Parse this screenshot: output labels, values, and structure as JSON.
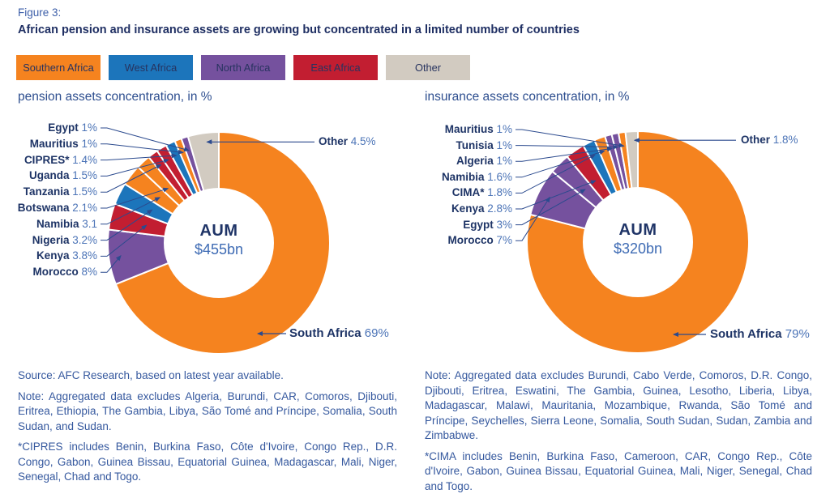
{
  "figure": {
    "label": "Figure 3:",
    "title": "African pension and insurance assets are growing but concentrated in a limited number of countries"
  },
  "legend": [
    {
      "label": "Southern Africa",
      "color": "#F5831F"
    },
    {
      "label": "West Africa",
      "color": "#1C75BB"
    },
    {
      "label": "North Africa",
      "color": "#75519E"
    },
    {
      "label": "East Africa",
      "color": "#C21E31"
    },
    {
      "label": "Other",
      "color": "#D2CBC1"
    }
  ],
  "chart_data": [
    {
      "type": "pie",
      "variant": "donut",
      "title": "pension assets concentration, in %",
      "units": "%",
      "legend_position": "top",
      "center": {
        "label": "AUM",
        "value": "$455bn"
      },
      "slices": [
        {
          "name": "South Africa",
          "value": 69,
          "display": "69%",
          "region": "Southern Africa",
          "color": "#F5831F"
        },
        {
          "name": "Morocco",
          "value": 8,
          "display": "8%",
          "region": "North Africa",
          "color": "#75519E"
        },
        {
          "name": "Kenya",
          "value": 3.8,
          "display": "3.8%",
          "region": "East Africa",
          "color": "#C21E31"
        },
        {
          "name": "Nigeria",
          "value": 3.2,
          "display": "3.2%",
          "region": "West Africa",
          "color": "#1C75BB"
        },
        {
          "name": "Namibia",
          "value": 3.1,
          "display": "3.1",
          "region": "Southern Africa",
          "color": "#F5831F"
        },
        {
          "name": "Botswana",
          "value": 2.1,
          "display": "2.1%",
          "region": "Southern Africa",
          "color": "#F5831F"
        },
        {
          "name": "Tanzania",
          "value": 1.5,
          "display": "1.5%",
          "region": "East Africa",
          "color": "#C21E31"
        },
        {
          "name": "Uganda",
          "value": 1.5,
          "display": "1.5%",
          "region": "East Africa",
          "color": "#C21E31"
        },
        {
          "name": "CIPRES*",
          "value": 1.4,
          "display": "1.4%",
          "region": "West Africa",
          "color": "#1C75BB"
        },
        {
          "name": "Mauritius",
          "value": 1,
          "display": "1%",
          "region": "Southern Africa",
          "color": "#F5831F"
        },
        {
          "name": "Egypt",
          "value": 1,
          "display": "1%",
          "region": "North Africa",
          "color": "#75519E"
        },
        {
          "name": "Other",
          "value": 4.5,
          "display": "4.5%",
          "region": "Other",
          "color": "#D2CBC1"
        }
      ],
      "left_labels": [
        "Egypt",
        "Mauritius",
        "CIPRES*",
        "Uganda",
        "Tanzania",
        "Botswana",
        "Namibia",
        "Nigeria",
        "Kenya",
        "Morocco"
      ],
      "right_callout": "Other",
      "bottom_callout": "South Africa"
    },
    {
      "type": "pie",
      "variant": "donut",
      "title": "insurance assets concentration, in %",
      "units": "%",
      "legend_position": "top",
      "center": {
        "label": "AUM",
        "value": "$320bn"
      },
      "slices": [
        {
          "name": "South Africa",
          "value": 79,
          "display": "79%",
          "region": "Southern Africa",
          "color": "#F5831F"
        },
        {
          "name": "Morocco",
          "value": 7,
          "display": "7%",
          "region": "North Africa",
          "color": "#75519E"
        },
        {
          "name": "Egypt",
          "value": 3,
          "display": "3%",
          "region": "North Africa",
          "color": "#75519E"
        },
        {
          "name": "Kenya",
          "value": 2.8,
          "display": "2.8%",
          "region": "East Africa",
          "color": "#C21E31"
        },
        {
          "name": "CIMA*",
          "value": 1.8,
          "display": "1.8%",
          "region": "West Africa",
          "color": "#1C75BB"
        },
        {
          "name": "Namibia",
          "value": 1.6,
          "display": "1.6%",
          "region": "Southern Africa",
          "color": "#F5831F"
        },
        {
          "name": "Algeria",
          "value": 1,
          "display": "1%",
          "region": "North Africa",
          "color": "#75519E"
        },
        {
          "name": "Tunisia",
          "value": 1,
          "display": "1%",
          "region": "North Africa",
          "color": "#75519E"
        },
        {
          "name": "Mauritius",
          "value": 1,
          "display": "1%",
          "region": "Southern Africa",
          "color": "#F5831F"
        },
        {
          "name": "Other",
          "value": 1.8,
          "display": "1.8%",
          "region": "Other",
          "color": "#D2CBC1"
        }
      ],
      "left_labels": [
        "Mauritius",
        "Tunisia",
        "Algeria",
        "Namibia",
        "CIMA*",
        "Kenya",
        "Egypt",
        "Morocco"
      ],
      "right_callout": "Other",
      "bottom_callout": "South Africa"
    }
  ],
  "notes_left": {
    "paragraphs": [
      "Source: AFC Research, based on latest year available.",
      "Note: Aggregated data excludes Algeria, Burundi, CAR, Comoros, Djibouti, Eritrea, Ethiopia, The Gambia, Libya, São Tomé and Príncipe, Somalia, South Sudan, and Sudan.",
      "*CIPRES includes Benin, Burkina Faso, Côte d'Ivoire, Congo Rep., D.R. Congo, Gabon, Guinea Bissau, Equatorial Guinea, Madagascar, Mali, Niger, Senegal, Chad and Togo."
    ]
  },
  "notes_right": {
    "paragraphs": [
      "Note: Aggregated data excludes Burundi, Cabo Verde, Comoros, D.R. Congo, Djibouti, Eritrea, Eswatini, The Gambia, Guinea, Lesotho, Liberia, Libya, Madagascar, Malawi, Mauritania, Mozambique, Rwanda, São Tomé and Príncipe, Seychelles, Sierra Leone, Somalia, South Sudan, Sudan, Zambia and Zimbabwe.",
      "*CIMA includes Benin, Burkina Faso, Cameroon, CAR, Congo Rep., Côte d'Ivoire, Gabon, Guinea Bissau, Equatorial Guinea, Mali, Niger, Senegal, Chad and Togo."
    ]
  }
}
